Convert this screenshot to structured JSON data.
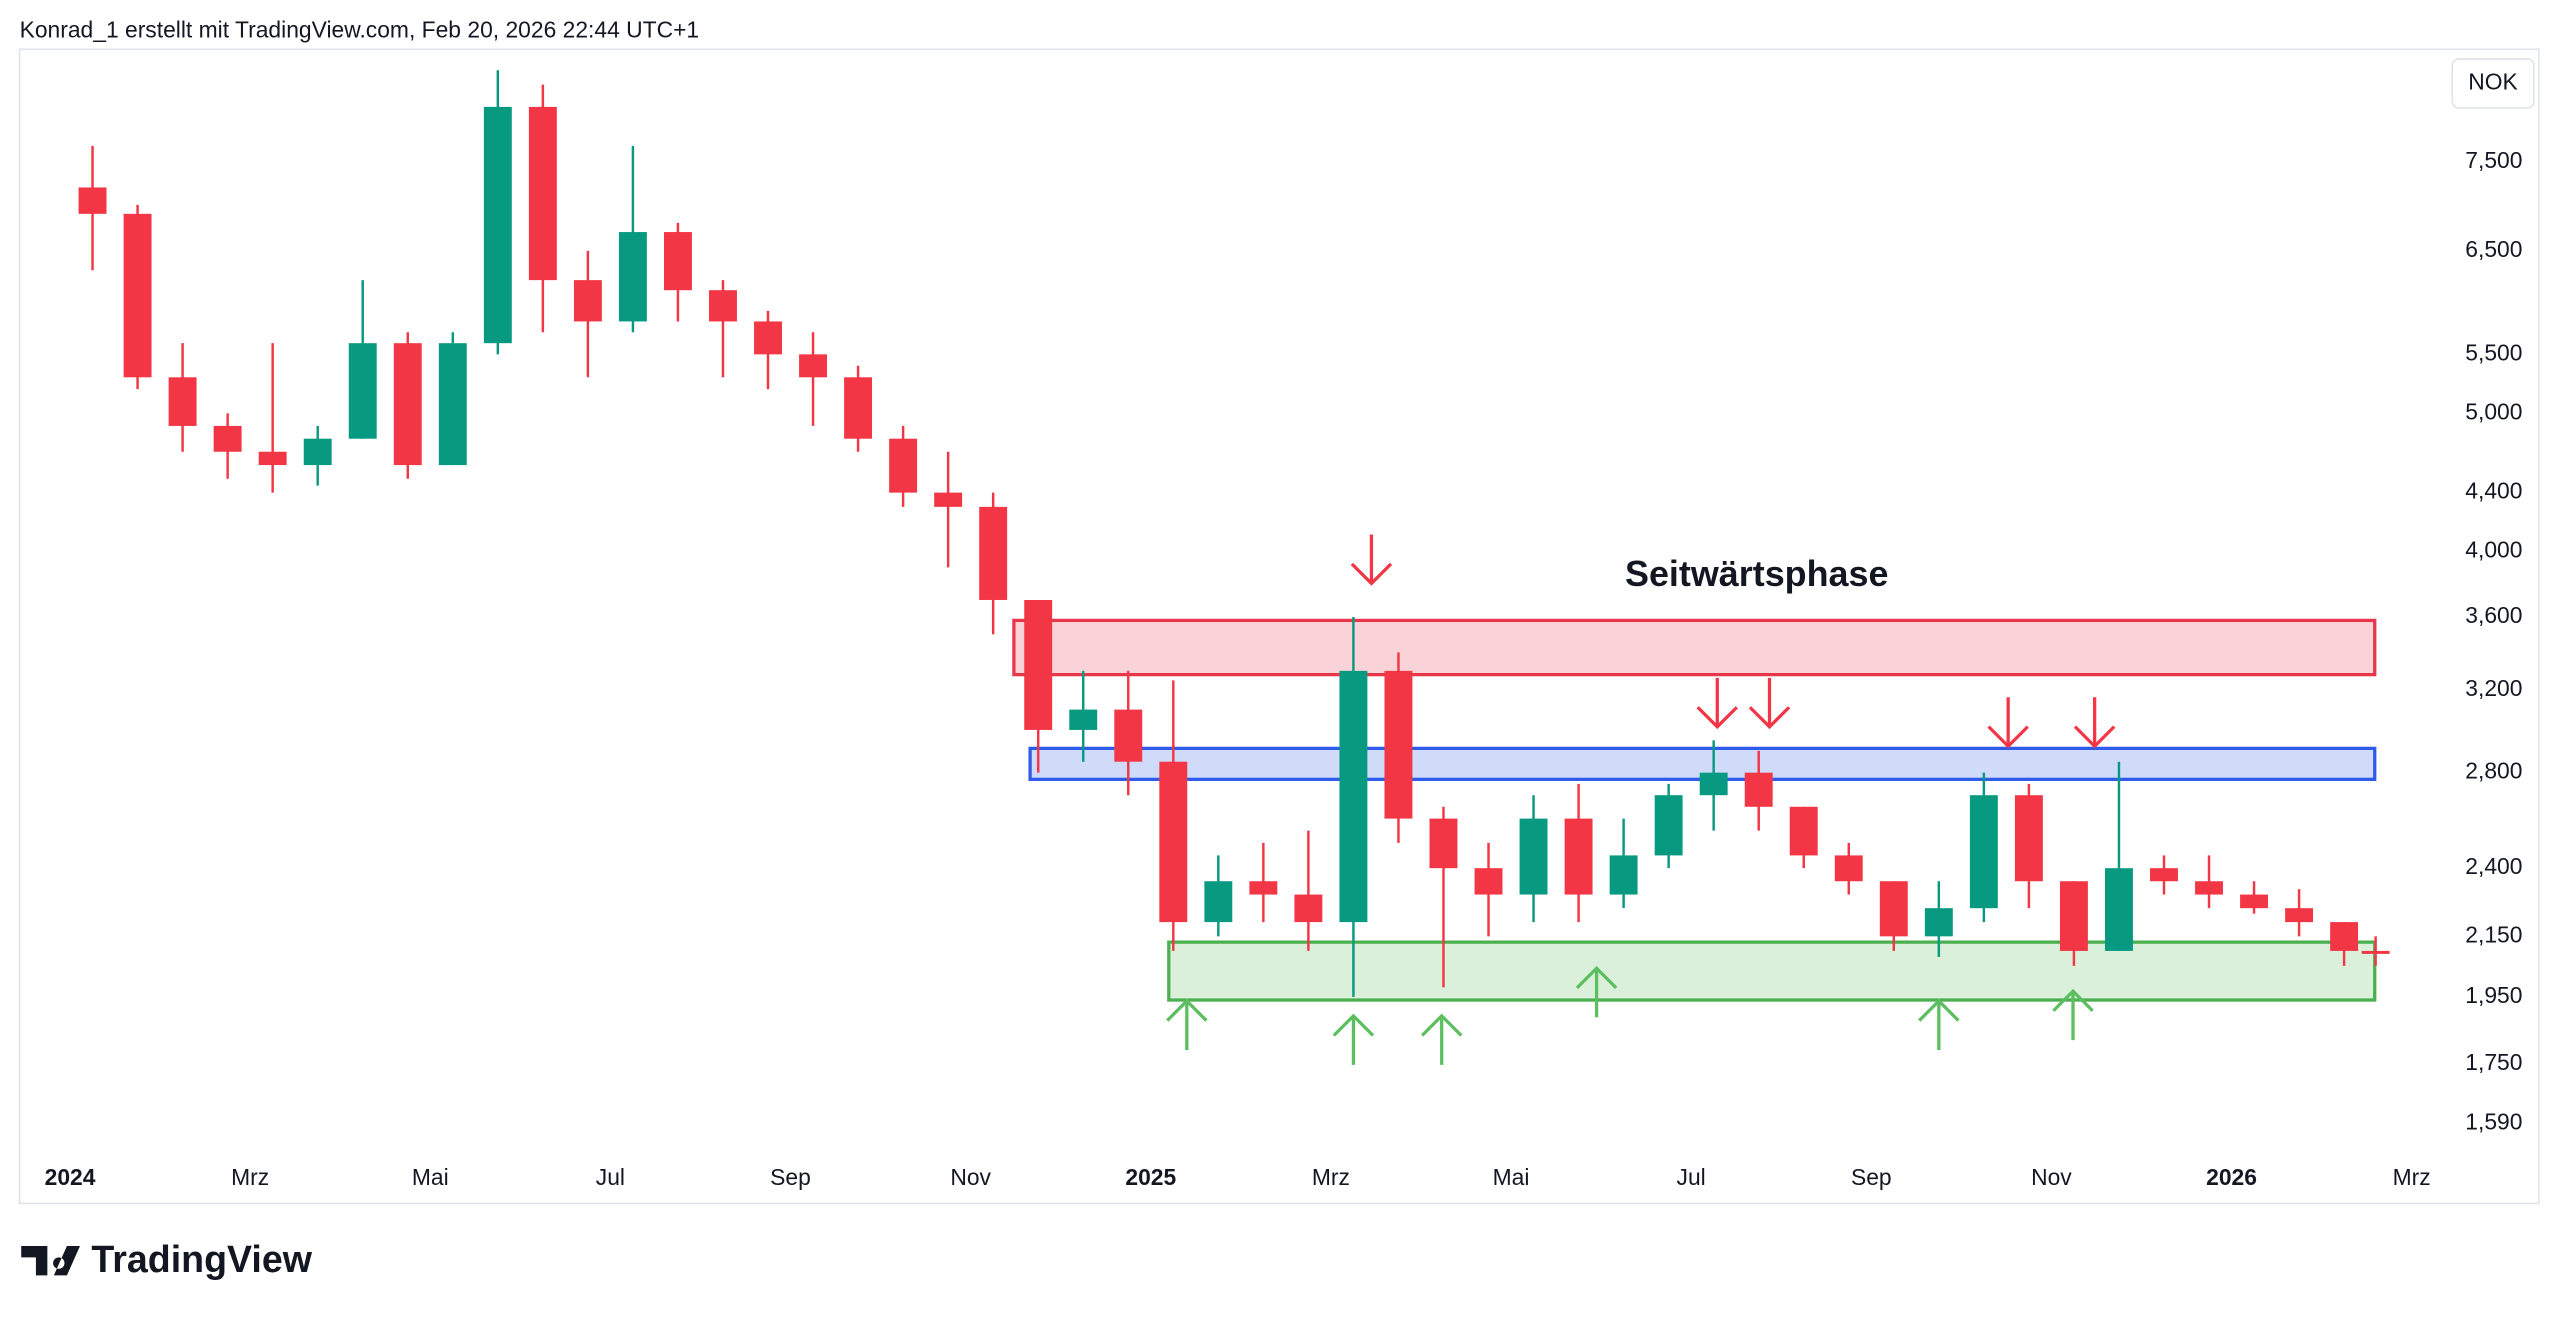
{
  "chart_data": {
    "type": "candlestick",
    "title": "Konrad_1 erstellt mit TradingView.com, Feb 20, 2026 22:44 UTC+1",
    "currency": "NOK",
    "annotation": "Seitwärtsphase",
    "brand": "TradingView",
    "log_scale": true,
    "up_color": "#089981",
    "down_color": "#f23645",
    "xlim": [
      -0.56,
      26.36
    ],
    "xticks": [
      {
        "value": 0,
        "label": "2024"
      },
      {
        "value": 2,
        "label": "Mrz"
      },
      {
        "value": 4,
        "label": "Mai"
      },
      {
        "value": 6,
        "label": "Jul"
      },
      {
        "value": 8,
        "label": "Sep"
      },
      {
        "value": 10,
        "label": "Nov"
      },
      {
        "value": 12,
        "label": "2025"
      },
      {
        "value": 14,
        "label": "Mrz"
      },
      {
        "value": 16,
        "label": "Mai"
      },
      {
        "value": 18,
        "label": "Jul"
      },
      {
        "value": 20,
        "label": "Sep"
      },
      {
        "value": 22,
        "label": "Nov"
      },
      {
        "value": 24,
        "label": "2026"
      },
      {
        "value": 26,
        "label": "Mrz"
      }
    ],
    "ylim": [
      1500,
      9000
    ],
    "yticks": [
      {
        "value": 7500,
        "label": "7,500"
      },
      {
        "value": 6500,
        "label": "6,500"
      },
      {
        "value": 5500,
        "label": "5,500"
      },
      {
        "value": 5000,
        "label": "5,000"
      },
      {
        "value": 4400,
        "label": "4,400"
      },
      {
        "value": 4000,
        "label": "4,000"
      },
      {
        "value": 3600,
        "label": "3,600"
      },
      {
        "value": 3200,
        "label": "3,200"
      },
      {
        "value": 2800,
        "label": "2,800"
      },
      {
        "value": 2400,
        "label": "2,400"
      },
      {
        "value": 2150,
        "label": "2,150"
      },
      {
        "value": 1950,
        "label": "1,950"
      },
      {
        "value": 1750,
        "label": "1,750"
      },
      {
        "value": 1590,
        "label": "1,590"
      }
    ],
    "x": [
      0.25,
      0.75,
      1.25,
      1.75,
      2.25,
      2.75,
      3.25,
      3.75,
      4.25,
      4.75,
      5.25,
      5.75,
      6.25,
      6.75,
      7.25,
      7.75,
      8.25,
      8.75,
      9.25,
      9.75,
      10.25,
      10.75,
      11.25,
      11.75,
      12.25,
      12.75,
      13.25,
      13.75,
      14.25,
      14.75,
      15.25,
      15.75,
      16.25,
      16.75,
      17.25,
      17.75,
      18.25,
      18.75,
      19.25,
      19.75,
      20.25,
      20.75,
      21.25,
      21.75,
      22.25,
      22.75,
      23.25,
      23.75,
      24.25,
      24.75,
      25.25,
      25.6
    ],
    "open": [
      7200,
      6900,
      5300,
      4900,
      4700,
      4600,
      4800,
      5600,
      4600,
      5600,
      8200,
      6200,
      5800,
      6700,
      6100,
      5800,
      5500,
      5300,
      4800,
      4400,
      4300,
      3700,
      3000,
      3100,
      2850,
      2200,
      2350,
      2300,
      2200,
      3300,
      2600,
      2400,
      2300,
      2600,
      2300,
      2450,
      2700,
      2800,
      2650,
      2450,
      2350,
      2150,
      2250,
      2700,
      2350,
      2100,
      2400,
      2350,
      2300,
      2250,
      2200,
      2100
    ],
    "high": [
      7700,
      7000,
      5600,
      5000,
      5600,
      4900,
      6200,
      5700,
      5700,
      8700,
      8500,
      6500,
      7700,
      6800,
      6200,
      5900,
      5700,
      5400,
      4900,
      4700,
      4400,
      3700,
      3300,
      3300,
      3250,
      2450,
      2500,
      2550,
      3600,
      3400,
      2650,
      2500,
      2700,
      2750,
      2600,
      2750,
      2950,
      2900,
      2650,
      2500,
      2350,
      2350,
      2800,
      2750,
      2350,
      2850,
      2450,
      2450,
      2350,
      2320,
      2200,
      2150
    ],
    "low": [
      6300,
      5200,
      4700,
      4500,
      4400,
      4450,
      4800,
      4500,
      4600,
      5500,
      5700,
      5300,
      5700,
      5800,
      5300,
      5200,
      4900,
      4700,
      4300,
      3900,
      3500,
      2800,
      2850,
      2700,
      2100,
      2150,
      2200,
      2100,
      1950,
      2500,
      1980,
      2150,
      2200,
      2200,
      2250,
      2400,
      2550,
      2550,
      2400,
      2300,
      2100,
      2080,
      2200,
      2250,
      2050,
      2100,
      2300,
      2250,
      2230,
      2150,
      2050,
      2050
    ],
    "close": [
      6900,
      5300,
      4900,
      4700,
      4600,
      4800,
      5600,
      4600,
      5600,
      8200,
      6200,
      5800,
      6700,
      6100,
      5800,
      5500,
      5300,
      4800,
      4400,
      4300,
      3700,
      3000,
      3100,
      2850,
      2200,
      2350,
      2300,
      2200,
      3300,
      2600,
      2400,
      2300,
      2600,
      2300,
      2450,
      2700,
      2800,
      2650,
      2450,
      2350,
      2150,
      2250,
      2700,
      2350,
      2100,
      2400,
      2350,
      2300,
      2250,
      2200,
      2100,
      2090
    ],
    "zones": [
      {
        "xlim": [
          10.48,
          25.59
        ],
        "ylim": [
          3280,
          3580
        ],
        "color": "#e8364a",
        "fill": "#f9d3d7"
      },
      {
        "xlim": [
          10.66,
          25.59
        ],
        "ylim": [
          2770,
          2912
        ],
        "color": "#2f5bea",
        "fill": "#d0daf9"
      },
      {
        "xlim": [
          12.2,
          25.59
        ],
        "ylim": [
          1940,
          2130
        ],
        "color": "#4caf50",
        "fill": "#dbf0da"
      }
    ],
    "arrows": [
      {
        "x": 14.45,
        "y": 3800,
        "direction": "down",
        "color": "#f23645"
      },
      {
        "x": 18.29,
        "y": 3015,
        "direction": "down",
        "color": "#f23645"
      },
      {
        "x": 18.87,
        "y": 3015,
        "direction": "down",
        "color": "#f23645"
      },
      {
        "x": 21.52,
        "y": 2922,
        "direction": "down",
        "color": "#f23645"
      },
      {
        "x": 22.48,
        "y": 2922,
        "direction": "down",
        "color": "#f23645"
      },
      {
        "x": 12.4,
        "y": 1937,
        "direction": "up",
        "color": "#5cbf5f"
      },
      {
        "x": 14.25,
        "y": 1891,
        "direction": "up",
        "color": "#5cbf5f"
      },
      {
        "x": 15.23,
        "y": 1891,
        "direction": "up",
        "color": "#5cbf5f"
      },
      {
        "x": 16.95,
        "y": 2042,
        "direction": "up",
        "color": "#5cbf5f"
      },
      {
        "x": 20.75,
        "y": 1937,
        "direction": "up",
        "color": "#5cbf5f"
      },
      {
        "x": 22.24,
        "y": 1968,
        "direction": "up",
        "color": "#5cbf5f"
      }
    ]
  }
}
